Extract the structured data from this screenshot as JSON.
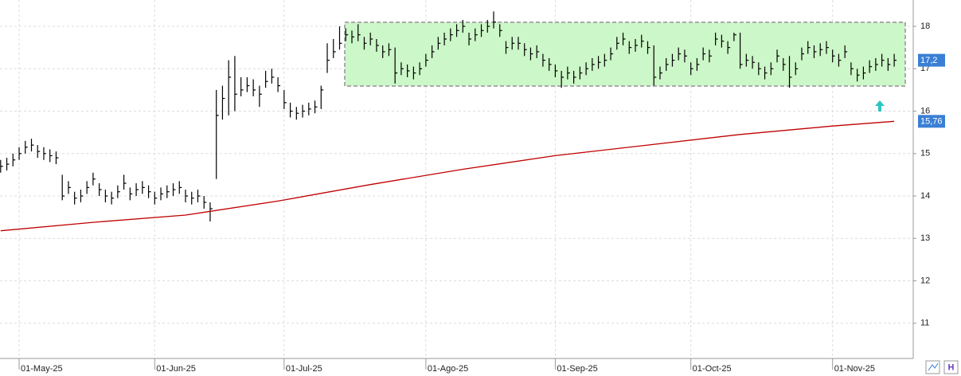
{
  "chart_data": {
    "type": "ohlc",
    "categories": [
      null,
      null,
      null,
      "01-May-25",
      null,
      null,
      null,
      null,
      null,
      null,
      null,
      null,
      null,
      null,
      null,
      null,
      null,
      null,
      null,
      null,
      null,
      null,
      null,
      null,
      null,
      "01-Jun-25",
      null,
      null,
      null,
      null,
      null,
      null,
      null,
      null,
      null,
      null,
      null,
      null,
      null,
      null,
      null,
      null,
      null,
      null,
      null,
      null,
      "01-Jul-25",
      null,
      null,
      null,
      null,
      null,
      null,
      null,
      null,
      null,
      null,
      null,
      null,
      null,
      null,
      null,
      null,
      null,
      null,
      null,
      null,
      null,
      null,
      "01-Ago-25",
      null,
      null,
      null,
      null,
      null,
      null,
      null,
      null,
      null,
      null,
      null,
      null,
      null,
      null,
      null,
      null,
      null,
      null,
      null,
      null,
      "01-Sep-25",
      null,
      null,
      null,
      null,
      null,
      null,
      null,
      null,
      null,
      null,
      null,
      null,
      null,
      null,
      null,
      null,
      null,
      null,
      null,
      null,
      null,
      "01-Oct-25",
      null,
      null,
      null,
      null,
      null,
      null,
      null,
      null,
      null,
      null,
      null,
      null,
      null,
      null,
      null,
      null,
      null,
      null,
      null,
      null,
      null,
      null,
      "01-Nov-25",
      null,
      null,
      null,
      null,
      null,
      null,
      null,
      null,
      null,
      null
    ],
    "high": [
      14.85,
      14.9,
      15.0,
      15.15,
      15.3,
      15.35,
      15.2,
      15.15,
      15.1,
      15.05,
      14.5,
      14.35,
      14.1,
      14.15,
      14.35,
      14.55,
      14.3,
      14.15,
      14.1,
      14.25,
      14.5,
      14.2,
      14.3,
      14.35,
      14.25,
      14.1,
      14.2,
      14.25,
      14.3,
      14.35,
      14.15,
      14.1,
      14.15,
      14.0,
      13.85,
      16.5,
      16.6,
      17.2,
      17.3,
      16.8,
      16.8,
      16.75,
      16.6,
      16.95,
      17.0,
      16.8,
      16.5,
      16.2,
      16.1,
      16.15,
      16.2,
      16.25,
      16.6,
      17.6,
      17.7,
      18.0,
      17.95,
      17.9,
      18.05,
      17.75,
      17.85,
      17.7,
      17.55,
      17.6,
      17.5,
      17.15,
      17.1,
      17.05,
      17.15,
      17.35,
      17.55,
      17.75,
      17.85,
      17.95,
      18.05,
      18.15,
      17.85,
      17.95,
      18.05,
      18.15,
      18.35,
      18.05,
      17.65,
      17.75,
      17.75,
      17.6,
      17.5,
      17.55,
      17.35,
      17.25,
      17.1,
      16.95,
      17.05,
      16.95,
      17.05,
      17.15,
      17.25,
      17.3,
      17.35,
      17.5,
      17.75,
      17.85,
      17.65,
      17.7,
      17.8,
      17.65,
      17.55,
      17.05,
      17.25,
      17.35,
      17.5,
      17.45,
      17.15,
      17.25,
      17.5,
      17.45,
      17.85,
      17.8,
      17.65,
      17.85,
      17.85,
      17.35,
      17.3,
      17.15,
      17.05,
      17.15,
      17.45,
      17.25,
      17.3,
      17.15,
      17.5,
      17.65,
      17.55,
      17.6,
      17.65,
      17.45,
      17.35,
      17.55,
      17.15,
      17.0,
      17.05,
      17.2,
      17.25,
      17.35,
      17.25,
      17.35
    ],
    "low": [
      14.55,
      14.6,
      14.7,
      14.85,
      15.0,
      15.05,
      14.9,
      14.85,
      14.8,
      14.75,
      13.9,
      14.05,
      13.8,
      13.85,
      14.05,
      14.25,
      14.0,
      13.85,
      13.8,
      13.95,
      14.15,
      13.9,
      14.0,
      14.05,
      13.95,
      13.8,
      13.9,
      13.95,
      14.0,
      14.05,
      13.85,
      13.8,
      13.85,
      13.7,
      13.4,
      14.4,
      15.8,
      15.9,
      16.0,
      16.35,
      16.45,
      16.35,
      16.1,
      16.55,
      16.65,
      16.45,
      16.05,
      15.85,
      15.8,
      15.85,
      15.9,
      15.95,
      16.05,
      16.9,
      17.25,
      17.45,
      17.65,
      17.6,
      17.65,
      17.45,
      17.55,
      17.4,
      17.25,
      17.3,
      16.65,
      16.85,
      16.8,
      16.75,
      16.85,
      17.05,
      17.25,
      17.45,
      17.55,
      17.65,
      17.75,
      17.85,
      17.55,
      17.65,
      17.75,
      17.85,
      17.95,
      17.75,
      17.35,
      17.45,
      17.45,
      17.3,
      17.2,
      17.25,
      17.05,
      16.95,
      16.8,
      16.55,
      16.75,
      16.65,
      16.75,
      16.85,
      16.95,
      17.0,
      17.05,
      17.2,
      17.45,
      17.55,
      17.35,
      17.4,
      17.5,
      17.35,
      16.6,
      16.75,
      16.95,
      17.05,
      17.2,
      17.15,
      16.85,
      16.95,
      17.2,
      17.15,
      17.55,
      17.5,
      17.35,
      17.65,
      17.0,
      17.05,
      17.0,
      16.85,
      16.75,
      16.85,
      17.15,
      16.95,
      16.55,
      16.85,
      17.2,
      17.35,
      17.25,
      17.3,
      17.35,
      17.15,
      17.05,
      17.25,
      16.85,
      16.7,
      16.75,
      16.9,
      16.95,
      17.05,
      16.95,
      17.05
    ],
    "close": [
      14.7,
      14.75,
      14.85,
      15.0,
      15.15,
      15.2,
      15.05,
      15.0,
      14.95,
      14.9,
      14.0,
      14.2,
      13.95,
      14.0,
      14.2,
      14.4,
      14.15,
      14.0,
      13.95,
      14.1,
      14.3,
      14.05,
      14.15,
      14.2,
      14.1,
      13.95,
      14.05,
      14.1,
      14.15,
      14.2,
      14.0,
      13.95,
      14.0,
      13.85,
      13.7,
      15.9,
      16.3,
      16.8,
      16.4,
      16.5,
      16.6,
      16.5,
      16.4,
      16.7,
      16.8,
      16.6,
      16.2,
      16.0,
      15.95,
      16.0,
      16.05,
      16.1,
      16.5,
      17.2,
      17.4,
      17.6,
      17.8,
      17.75,
      17.8,
      17.6,
      17.7,
      17.55,
      17.4,
      17.45,
      16.9,
      17.0,
      16.95,
      16.9,
      17.0,
      17.2,
      17.4,
      17.6,
      17.7,
      17.8,
      17.9,
      18.0,
      17.7,
      17.8,
      17.9,
      18.0,
      18.1,
      17.9,
      17.5,
      17.6,
      17.6,
      17.45,
      17.35,
      17.4,
      17.2,
      17.1,
      16.95,
      16.8,
      16.9,
      16.8,
      16.9,
      17.0,
      17.1,
      17.15,
      17.2,
      17.35,
      17.6,
      17.7,
      17.5,
      17.55,
      17.65,
      17.5,
      16.8,
      16.9,
      17.1,
      17.2,
      17.35,
      17.3,
      17.0,
      17.1,
      17.35,
      17.3,
      17.7,
      17.65,
      17.5,
      17.8,
      17.1,
      17.2,
      17.15,
      17.0,
      16.9,
      17.0,
      17.3,
      17.1,
      16.8,
      17.0,
      17.35,
      17.5,
      17.4,
      17.45,
      17.5,
      17.3,
      17.2,
      17.4,
      17.0,
      16.85,
      16.9,
      17.05,
      17.1,
      17.2,
      17.1,
      17.2
    ],
    "color": "#000000",
    "ma": {
      "color": "#c00000",
      "x": [
        0,
        15,
        30,
        45,
        60,
        75,
        90,
        105,
        120,
        135,
        145
      ],
      "values": [
        13.18,
        13.38,
        13.55,
        13.88,
        14.27,
        14.63,
        14.95,
        15.2,
        15.45,
        15.65,
        15.76
      ]
    },
    "last_price": {
      "value": 17.2,
      "label": "17,2",
      "color": "#3a7fd5"
    },
    "ma_last": {
      "value": 15.76,
      "label": "15,76",
      "color": "#3a7fd5"
    },
    "ylim": [
      10.17,
      18.62
    ],
    "yticks": [
      11,
      12,
      13,
      14,
      15,
      16,
      17,
      18
    ],
    "grid": true
  }
}
